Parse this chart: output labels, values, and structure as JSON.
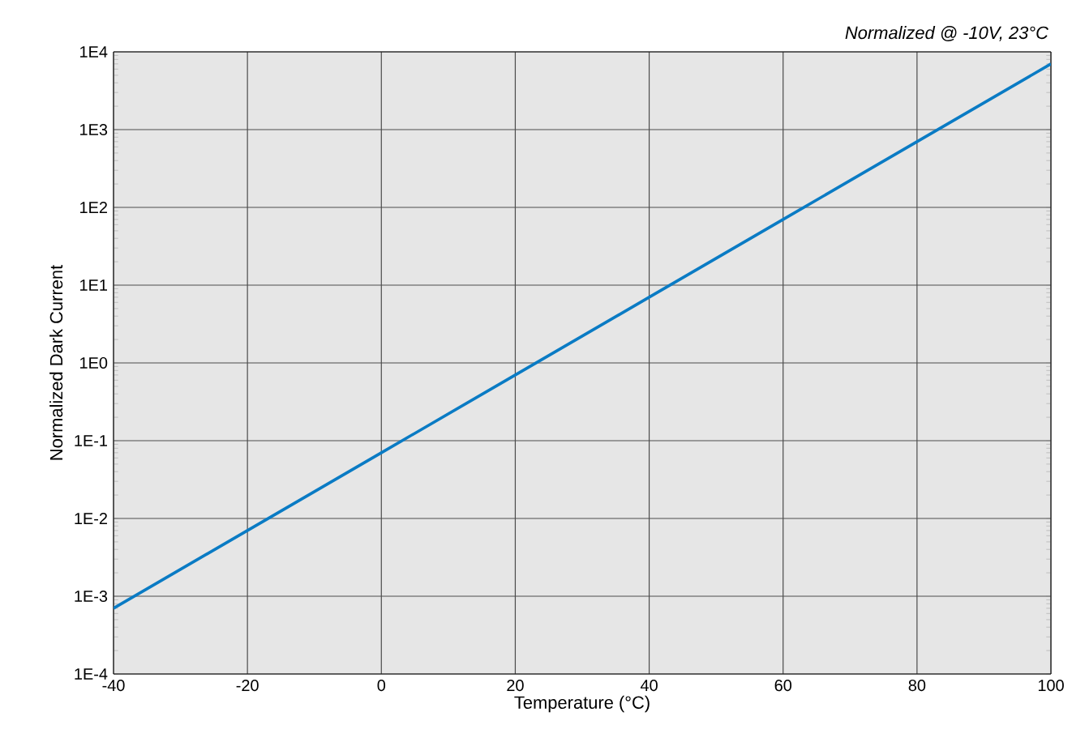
{
  "chart_data": {
    "type": "line",
    "xlabel": "Temperature (°C)",
    "ylabel": "Normalized Dark Current",
    "annotations": [
      "Normalized @ -10V, 23°C"
    ],
    "x": [
      -40,
      -20,
      0,
      20,
      40,
      60,
      80,
      100
    ],
    "series": [
      {
        "color": "#0a7bc4",
        "values": [
          0.0007,
          0.007,
          0.07,
          0.7,
          7,
          70,
          700,
          7000
        ]
      }
    ],
    "xlim": [
      -40,
      100
    ],
    "xticks": [
      -40,
      -20,
      0,
      20,
      40,
      60,
      80,
      100
    ],
    "ylim": [
      0.0001,
      10000
    ],
    "yticks": [
      {
        "value": 0.0001,
        "label": "1E-4"
      },
      {
        "value": 0.001,
        "label": "1E-3"
      },
      {
        "value": 0.01,
        "label": "1E-2"
      },
      {
        "value": 0.1,
        "label": "1E-1"
      },
      {
        "value": 1,
        "label": "1E0"
      },
      {
        "value": 10,
        "label": "1E1"
      },
      {
        "value": 100,
        "label": "1E2"
      },
      {
        "value": 1000,
        "label": "1E3"
      },
      {
        "value": 10000,
        "label": "1E4"
      }
    ],
    "log": true,
    "grid": true,
    "marker": "none",
    "line_style": "solid"
  }
}
